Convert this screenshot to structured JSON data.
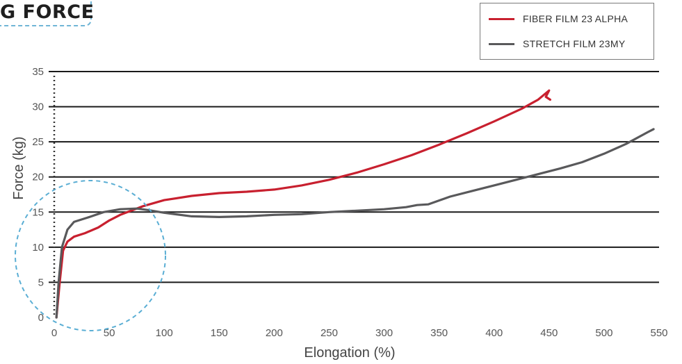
{
  "title": "G FORCE",
  "chart_data": {
    "type": "line",
    "xlabel": "Elongation (%)",
    "ylabel": "Force (kg)",
    "xlim": [
      0,
      550
    ],
    "ylim": [
      0,
      35
    ],
    "x_ticks": [
      0,
      50,
      100,
      150,
      200,
      250,
      300,
      350,
      400,
      450,
      500,
      550
    ],
    "y_ticks": [
      0,
      5,
      10,
      15,
      20,
      25,
      30,
      35
    ],
    "grid": "horizontal",
    "legend_position": "top-right",
    "series": [
      {
        "name": "FIBER FILM 23 ALPHA",
        "color": "#c8202f",
        "points": [
          [
            2,
            0
          ],
          [
            5,
            5
          ],
          [
            8,
            9.5
          ],
          [
            12,
            10.8
          ],
          [
            18,
            11.5
          ],
          [
            28,
            12
          ],
          [
            40,
            12.8
          ],
          [
            50,
            13.8
          ],
          [
            60,
            14.6
          ],
          [
            70,
            15.2
          ],
          [
            80,
            15.8
          ],
          [
            100,
            16.7
          ],
          [
            125,
            17.3
          ],
          [
            150,
            17.7
          ],
          [
            175,
            17.9
          ],
          [
            200,
            18.2
          ],
          [
            225,
            18.8
          ],
          [
            250,
            19.6
          ],
          [
            275,
            20.6
          ],
          [
            300,
            21.8
          ],
          [
            325,
            23.1
          ],
          [
            350,
            24.6
          ],
          [
            375,
            26.2
          ],
          [
            400,
            27.9
          ],
          [
            425,
            29.7
          ],
          [
            440,
            31
          ],
          [
            450,
            32.3
          ],
          [
            447,
            31.4
          ],
          [
            451,
            31
          ]
        ]
      },
      {
        "name": "STRETCH FILM 23MY",
        "color": "#59595b",
        "points": [
          [
            2,
            0
          ],
          [
            4,
            5
          ],
          [
            7,
            10
          ],
          [
            12,
            12.5
          ],
          [
            18,
            13.6
          ],
          [
            30,
            14.2
          ],
          [
            45,
            15
          ],
          [
            60,
            15.4
          ],
          [
            75,
            15.5
          ],
          [
            85,
            15.3
          ],
          [
            100,
            14.9
          ],
          [
            125,
            14.4
          ],
          [
            150,
            14.3
          ],
          [
            175,
            14.4
          ],
          [
            200,
            14.6
          ],
          [
            225,
            14.7
          ],
          [
            250,
            15
          ],
          [
            275,
            15.2
          ],
          [
            300,
            15.4
          ],
          [
            320,
            15.7
          ],
          [
            330,
            16
          ],
          [
            340,
            16.1
          ],
          [
            360,
            17.2
          ],
          [
            380,
            18
          ],
          [
            400,
            18.8
          ],
          [
            420,
            19.6
          ],
          [
            440,
            20.4
          ],
          [
            460,
            21.2
          ],
          [
            480,
            22.1
          ],
          [
            500,
            23.3
          ],
          [
            520,
            24.7
          ],
          [
            540,
            26.4
          ],
          [
            545,
            26.8
          ]
        ]
      }
    ]
  }
}
